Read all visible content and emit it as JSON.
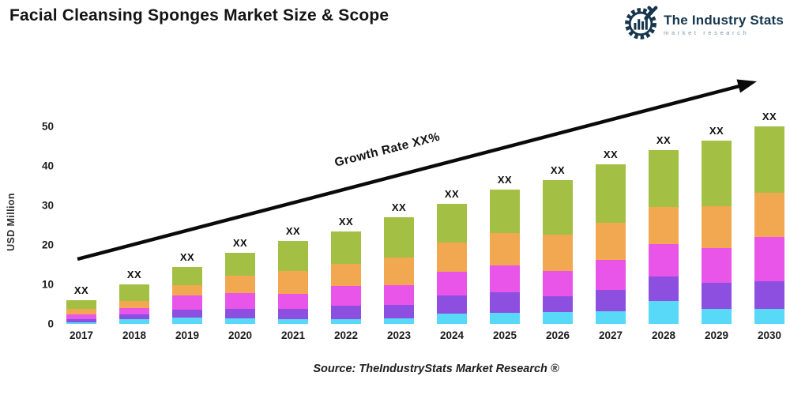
{
  "header": {
    "title": "Facial Cleansing Sponges Market Size & Scope",
    "logo": {
      "name": "The Industry Stats",
      "tagline": "market research",
      "brand_color": "#16364e",
      "tagline_color": "#7e95a7"
    }
  },
  "chart_data": {
    "type": "bar",
    "stacked": true,
    "ylabel": "USD Million",
    "ylim": [
      0,
      50
    ],
    "yticks": [
      0,
      10,
      20,
      30,
      40,
      50
    ],
    "grid": false,
    "legend": false,
    "categories": [
      "2017",
      "2018",
      "2019",
      "2020",
      "2021",
      "2022",
      "2023",
      "2024",
      "2025",
      "2026",
      "2027",
      "2028",
      "2029",
      "2030"
    ],
    "bar_labels": [
      "XX",
      "XX",
      "XX",
      "XX",
      "XX",
      "XX",
      "XX",
      "XX",
      "XX",
      "XX",
      "XX",
      "XX",
      "XX",
      "XX"
    ],
    "series": [
      {
        "name": "segment-cyan",
        "color": "#57d9f7",
        "values": [
          0.5,
          1.2,
          1.6,
          1.5,
          1.2,
          1.3,
          1.4,
          2.7,
          2.9,
          3.0,
          3.3,
          5.9,
          3.9,
          3.9
        ]
      },
      {
        "name": "segment-purple",
        "color": "#8d4fe0",
        "values": [
          0.7,
          1.2,
          2.0,
          2.4,
          2.6,
          3.3,
          3.4,
          4.5,
          5.1,
          4.1,
          5.4,
          6.1,
          6.6,
          7.0
        ]
      },
      {
        "name": "segment-magenta",
        "color": "#e855e8",
        "values": [
          1.3,
          1.7,
          3.6,
          4.0,
          3.9,
          5.0,
          5.0,
          6.1,
          6.9,
          6.3,
          7.6,
          8.2,
          8.7,
          11.2
        ]
      },
      {
        "name": "segment-orange",
        "color": "#f2a850",
        "values": [
          1.4,
          1.8,
          2.6,
          4.3,
          5.8,
          5.7,
          7.0,
          7.3,
          8.1,
          9.2,
          9.3,
          9.5,
          10.7,
          11.2
        ]
      },
      {
        "name": "segment-green",
        "color": "#a3bf44",
        "values": [
          2.1,
          4.1,
          4.7,
          5.8,
          7.5,
          8.2,
          10.2,
          9.9,
          11.0,
          13.9,
          14.9,
          14.3,
          16.6,
          16.7
        ]
      }
    ],
    "annotation": {
      "text": "Growth Rate XX%"
    },
    "totals": [
      6.0,
      10.0,
      14.5,
      18.0,
      21.0,
      23.5,
      27.0,
      30.5,
      34.0,
      36.5,
      40.5,
      44.0,
      46.5,
      50.0
    ]
  },
  "footer": {
    "source": "Source: TheIndustryStats Market Research ®"
  }
}
